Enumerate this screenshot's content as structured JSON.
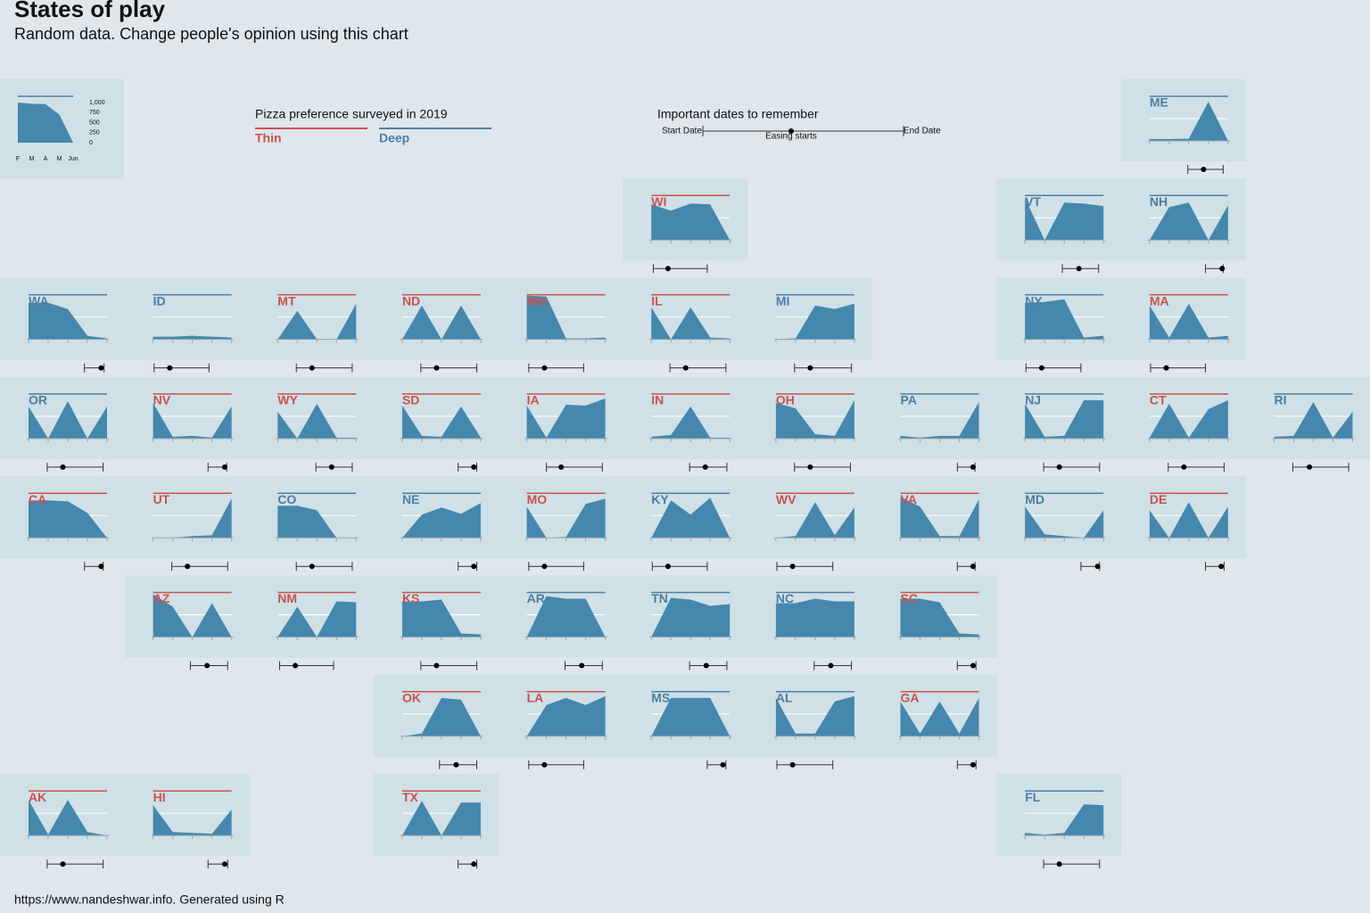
{
  "chart_data": {
    "type": "tilemap",
    "title": "States of play",
    "subtitle": "Random data. Change people's opinion using this chart",
    "caption": "https://www.nandeshwar.info. Generated using R",
    "legend_title": "Pizza preference surveyed in 2019",
    "series": [
      {
        "name": "Thin",
        "color": "#c9524e"
      },
      {
        "name": "Deep",
        "color": "#4d7ea2"
      }
    ],
    "area_color": "#4587ad",
    "tile_color": "#cfe0e6",
    "xlim": [
      2,
      6
    ],
    "xticks": [
      {
        "value": 2,
        "label": "F"
      },
      {
        "value": 3,
        "label": "M"
      },
      {
        "value": 4,
        "label": "A"
      },
      {
        "value": 5,
        "label": "M"
      },
      {
        "value": 6,
        "label": "Jun"
      }
    ],
    "ylim": [
      0,
      1000
    ],
    "yticks": [
      0,
      250,
      500,
      750,
      {
        "value": 1000,
        "label": "1,000"
      }
    ],
    "tile_yticks": [
      0,
      500,
      1000
    ],
    "sample_values": [
      1000,
      970,
      960,
      700,
      0
    ],
    "dates_legend": {
      "title": "Important dates to remember",
      "start": "Start Date",
      "easing": "Easing starts",
      "end": "End Date"
    },
    "tiles": [
      {
        "label": "ME",
        "preference": "Deep",
        "values": [
          40,
          40,
          50,
          880,
          0
        ],
        "start": 3.95,
        "easing": 4.75,
        "end": 5.75
      },
      {
        "label": "WI",
        "preference": "Thin",
        "values": [
          800,
          660,
          820,
          800,
          0
        ],
        "start": 2.1,
        "easing": 2.85,
        "end": 4.85
      },
      {
        "label": "VT",
        "preference": "Deep",
        "values": [
          940,
          0,
          840,
          820,
          760
        ],
        "start": 3.9,
        "easing": 4.75,
        "end": 5.75
      },
      {
        "label": "NH",
        "preference": "Deep",
        "values": [
          0,
          740,
          840,
          0,
          780
        ],
        "start": 4.85,
        "easing": 5.7,
        "end": 5.75
      },
      {
        "label": "WA",
        "preference": "Deep",
        "values": [
          820,
          820,
          680,
          80,
          20
        ],
        "start": 4.85,
        "easing": 5.7,
        "end": 5.85
      },
      {
        "label": "ID",
        "preference": "Deep",
        "values": [
          60,
          60,
          80,
          60,
          40
        ],
        "start": 2.05,
        "easing": 2.85,
        "end": 4.85
      },
      {
        "label": "MT",
        "preference": "Thin",
        "values": [
          0,
          640,
          0,
          0,
          800
        ],
        "start": 2.95,
        "easing": 3.75,
        "end": 5.8
      },
      {
        "label": "ND",
        "preference": "Thin",
        "values": [
          0,
          760,
          0,
          760,
          0
        ],
        "start": 2.95,
        "easing": 3.75,
        "end": 5.8
      },
      {
        "label": "MN",
        "preference": "Thin",
        "values": [
          980,
          960,
          20,
          20,
          40
        ],
        "start": 2.1,
        "easing": 2.9,
        "end": 4.9
      },
      {
        "label": "IL",
        "preference": "Thin",
        "values": [
          720,
          0,
          720,
          40,
          20
        ],
        "start": 2.95,
        "easing": 3.75,
        "end": 5.8
      },
      {
        "label": "MI",
        "preference": "Deep",
        "values": [
          0,
          20,
          760,
          680,
          800
        ],
        "start": 2.95,
        "easing": 3.75,
        "end": 5.85
      },
      {
        "label": "NY",
        "preference": "Deep",
        "values": [
          820,
          840,
          900,
          40,
          80
        ],
        "start": 2.05,
        "easing": 2.85,
        "end": 4.85
      },
      {
        "label": "MA",
        "preference": "Thin",
        "values": [
          760,
          40,
          800,
          40,
          80
        ],
        "start": 2.05,
        "easing": 2.85,
        "end": 4.85
      },
      {
        "label": "OR",
        "preference": "Deep",
        "values": [
          720,
          0,
          840,
          0,
          720
        ],
        "start": 2.95,
        "easing": 3.75,
        "end": 5.8
      },
      {
        "label": "NV",
        "preference": "Thin",
        "values": [
          800,
          40,
          60,
          20,
          720
        ],
        "start": 4.8,
        "easing": 5.65,
        "end": 5.75
      },
      {
        "label": "WY",
        "preference": "Thin",
        "values": [
          600,
          0,
          780,
          20,
          20
        ],
        "start": 3.95,
        "easing": 4.75,
        "end": 5.8
      },
      {
        "label": "SD",
        "preference": "Thin",
        "values": [
          740,
          60,
          40,
          720,
          20
        ],
        "start": 4.85,
        "easing": 5.65,
        "end": 5.8
      },
      {
        "label": "IA",
        "preference": "Thin",
        "values": [
          740,
          20,
          760,
          740,
          900
        ],
        "start": 3,
        "easing": 3.75,
        "end": 5.85
      },
      {
        "label": "IN",
        "preference": "Thin",
        "values": [
          40,
          80,
          720,
          20,
          20
        ],
        "start": 3.95,
        "easing": 4.75,
        "end": 5.85
      },
      {
        "label": "OH",
        "preference": "Thin",
        "values": [
          800,
          680,
          100,
          60,
          860
        ],
        "start": 2.95,
        "easing": 3.75,
        "end": 5.8
      },
      {
        "label": "PA",
        "preference": "Deep",
        "values": [
          60,
          20,
          60,
          60,
          820
        ],
        "start": 4.9,
        "easing": 5.7,
        "end": 5.8
      },
      {
        "label": "NJ",
        "preference": "Deep",
        "values": [
          780,
          40,
          60,
          860,
          860
        ],
        "start": 2.95,
        "easing": 3.75,
        "end": 5.8
      },
      {
        "label": "CT",
        "preference": "Thin",
        "values": [
          20,
          780,
          20,
          660,
          860
        ],
        "start": 2.95,
        "easing": 3.75,
        "end": 5.8
      },
      {
        "label": "RI",
        "preference": "Deep",
        "values": [
          40,
          60,
          820,
          20,
          600
        ],
        "start": 2.95,
        "easing": 3.8,
        "end": 5.8
      },
      {
        "label": "CA",
        "preference": "Thin",
        "values": [
          840,
          840,
          820,
          560,
          0
        ],
        "start": 4.85,
        "easing": 5.7,
        "end": 5.8
      },
      {
        "label": "UT",
        "preference": "Thin",
        "values": [
          0,
          0,
          40,
          60,
          880
        ],
        "start": 2.95,
        "easing": 3.75,
        "end": 5.8
      },
      {
        "label": "CO",
        "preference": "Deep",
        "values": [
          720,
          720,
          620,
          0,
          0
        ],
        "start": 2.95,
        "easing": 3.75,
        "end": 5.8
      },
      {
        "label": "NE",
        "preference": "Deep",
        "values": [
          0,
          520,
          680,
          540,
          780
        ],
        "start": 4.85,
        "easing": 5.65,
        "end": 5.8
      },
      {
        "label": "MO",
        "preference": "Thin",
        "values": [
          700,
          0,
          20,
          760,
          880
        ],
        "start": 2.1,
        "easing": 2.9,
        "end": 4.9
      },
      {
        "label": "KY",
        "preference": "Deep",
        "values": [
          0,
          840,
          520,
          900,
          0
        ],
        "start": 2.05,
        "easing": 2.85,
        "end": 4.85
      },
      {
        "label": "WV",
        "preference": "Thin",
        "values": [
          0,
          40,
          800,
          60,
          680
        ],
        "start": 2.05,
        "easing": 2.85,
        "end": 4.9
      },
      {
        "label": "VA",
        "preference": "Thin",
        "values": [
          920,
          700,
          40,
          40,
          860
        ],
        "start": 4.9,
        "easing": 5.7,
        "end": 5.8
      },
      {
        "label": "MD",
        "preference": "Deep",
        "values": [
          700,
          80,
          40,
          0,
          620
        ],
        "start": 4.85,
        "easing": 5.7,
        "end": 5.8
      },
      {
        "label": "DE",
        "preference": "Thin",
        "values": [
          620,
          0,
          800,
          0,
          700
        ],
        "start": 4.85,
        "easing": 5.65,
        "end": 5.8
      },
      {
        "label": "AZ",
        "preference": "Thin",
        "values": [
          960,
          680,
          0,
          760,
          0
        ],
        "start": 3.9,
        "easing": 4.75,
        "end": 5.8
      },
      {
        "label": "NM",
        "preference": "Thin",
        "values": [
          0,
          680,
          0,
          800,
          780
        ],
        "start": 2.1,
        "easing": 2.9,
        "end": 4.85
      },
      {
        "label": "KS",
        "preference": "Thin",
        "values": [
          800,
          800,
          840,
          80,
          60
        ],
        "start": 2.95,
        "easing": 3.75,
        "end": 5.8
      },
      {
        "label": "AR",
        "preference": "Deep",
        "values": [
          0,
          920,
          860,
          860,
          0
        ],
        "start": 3.95,
        "easing": 4.8,
        "end": 5.85
      },
      {
        "label": "TN",
        "preference": "Deep",
        "values": [
          0,
          880,
          840,
          700,
          740
        ],
        "start": 3.95,
        "easing": 4.8,
        "end": 5.85
      },
      {
        "label": "NC",
        "preference": "Deep",
        "values": [
          760,
          760,
          860,
          800,
          800
        ],
        "start": 3.95,
        "easing": 4.8,
        "end": 5.85
      },
      {
        "label": "SC",
        "preference": "Thin",
        "values": [
          860,
          860,
          780,
          80,
          60
        ],
        "start": 4.9,
        "easing": 5.7,
        "end": 5.85
      },
      {
        "label": "OK",
        "preference": "Thin",
        "values": [
          0,
          60,
          860,
          820,
          0
        ],
        "start": 3.9,
        "easing": 4.75,
        "end": 5.8
      },
      {
        "label": "LA",
        "preference": "Thin",
        "values": [
          0,
          700,
          860,
          700,
          900
        ],
        "start": 2.1,
        "easing": 2.9,
        "end": 4.9
      },
      {
        "label": "MS",
        "preference": "Deep",
        "values": [
          0,
          860,
          860,
          860,
          0
        ],
        "start": 4.85,
        "easing": 5.65,
        "end": 5.8
      },
      {
        "label": "AL",
        "preference": "Deep",
        "values": [
          860,
          60,
          60,
          780,
          900
        ],
        "start": 2.05,
        "easing": 2.85,
        "end": 4.9
      },
      {
        "label": "GA",
        "preference": "Thin",
        "values": [
          780,
          60,
          780,
          60,
          860
        ],
        "start": 4.9,
        "easing": 5.7,
        "end": 5.85
      },
      {
        "label": "AK",
        "preference": "Thin",
        "values": [
          800,
          20,
          800,
          80,
          0
        ],
        "start": 2.95,
        "easing": 3.75,
        "end": 5.8
      },
      {
        "label": "HI",
        "preference": "Thin",
        "values": [
          680,
          80,
          60,
          40,
          580
        ],
        "start": 4.8,
        "easing": 5.65,
        "end": 5.8
      },
      {
        "label": "TX",
        "preference": "Thin",
        "values": [
          0,
          780,
          0,
          740,
          740
        ],
        "start": 4.85,
        "easing": 5.65,
        "end": 5.8
      },
      {
        "label": "FL",
        "preference": "Deep",
        "values": [
          60,
          20,
          60,
          700,
          680
        ],
        "start": 2.95,
        "easing": 3.75,
        "end": 5.8
      }
    ]
  }
}
